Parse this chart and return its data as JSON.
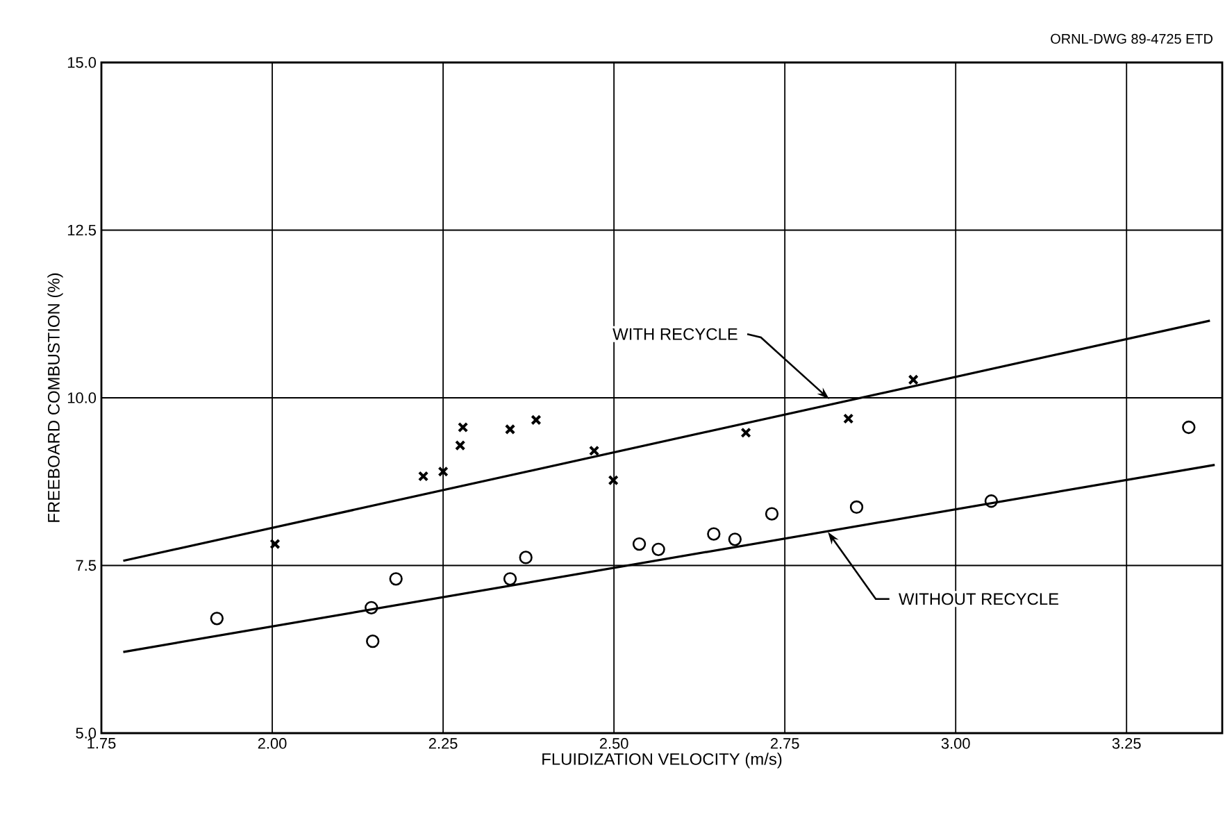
{
  "chart_data": {
    "type": "scatter",
    "xlabel": "FLUIDIZATION VELOCITY (m/s)",
    "ylabel": "FREEBOARD COMBUSTION (%)",
    "xlim": [
      1.75,
      3.39
    ],
    "ylim": [
      5,
      15
    ],
    "xticks": [
      1.75,
      {
        "value": 2,
        "label": "2.00"
      },
      2.25,
      {
        "value": 2.5,
        "label": "2.50"
      },
      2.75,
      {
        "value": 3,
        "label": "3.00"
      },
      3.25
    ],
    "yticks": [
      {
        "value": 5,
        "label": "5.0"
      },
      {
        "value": 7.5,
        "label": "7.5"
      },
      {
        "value": 10,
        "label": "10.0"
      },
      12.5,
      {
        "value": 15,
        "label": "15.0"
      }
    ],
    "grid": true,
    "series": [
      {
        "marker": "cross",
        "color": "#000000",
        "x": [
          2.004,
          2.221,
          2.25,
          2.275,
          2.279,
          2.348,
          2.386,
          2.471,
          2.499,
          2.693,
          2.843,
          2.938
        ],
        "values": [
          7.82,
          8.83,
          8.9,
          9.29,
          9.56,
          9.53,
          9.67,
          9.21,
          8.77,
          9.48,
          9.69,
          10.27
        ]
      },
      {
        "marker": "circle",
        "color": "#000000",
        "x": [
          1.919,
          2.145,
          2.147,
          2.181,
          2.348,
          2.371,
          2.537,
          2.565,
          2.646,
          2.677,
          2.731,
          2.855,
          3.052,
          3.341
        ],
        "values": [
          6.71,
          6.87,
          6.37,
          7.3,
          7.3,
          7.62,
          7.82,
          7.74,
          7.97,
          7.89,
          8.27,
          8.37,
          8.46,
          9.56
        ]
      },
      {
        "type": "line",
        "marker": "none",
        "color": "#000000",
        "x": [
          1.782,
          3.372
        ],
        "values": [
          7.57,
          11.15
        ]
      },
      {
        "type": "line",
        "marker": "none",
        "color": "#000000",
        "x": [
          1.782,
          3.379
        ],
        "values": [
          6.21,
          9.0
        ]
      }
    ],
    "annotations": [
      {
        "text": "WITH RECYCLE",
        "x": 2.815,
        "y": 9.98
      },
      {
        "text": "WITHOUT RECYCLE",
        "x": 2.813,
        "y": 8.0
      },
      "ORNL-DWG 89-4725 ETD"
    ]
  }
}
